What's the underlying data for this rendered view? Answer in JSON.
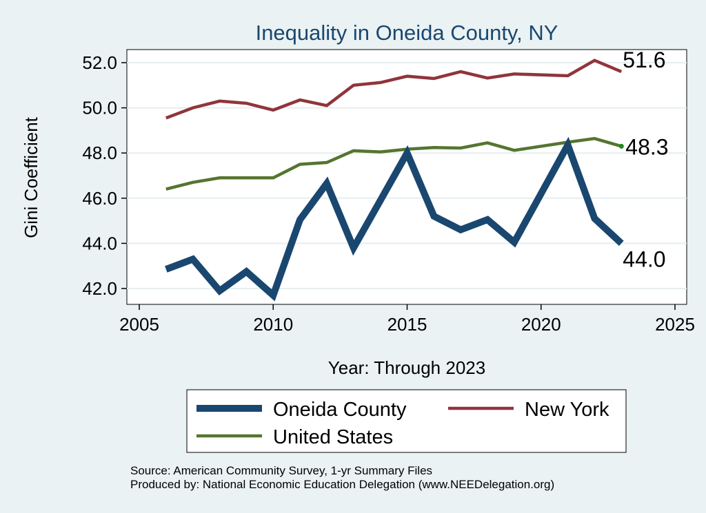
{
  "chart_data": {
    "type": "line",
    "title": "Inequality in Oneida County, NY",
    "xlabel": "Year: Through 2023",
    "ylabel": "Gini Coefficient",
    "xlim": [
      2005,
      2025
    ],
    "ylim": [
      41.5,
      52.5
    ],
    "x_ticks": [
      2005,
      2010,
      2015,
      2020,
      2025
    ],
    "y_ticks": [
      42,
      44,
      46,
      48,
      50,
      52
    ],
    "y_tick_labels": [
      "42.0",
      "44.0",
      "46.0",
      "48.0",
      "50.0",
      "52.0"
    ],
    "grid": true,
    "x": [
      2006,
      2007,
      2008,
      2009,
      2010,
      2011,
      2012,
      2013,
      2014,
      2015,
      2016,
      2017,
      2018,
      2019,
      2021,
      2022,
      2023
    ],
    "series": [
      {
        "name": "Oneida County",
        "color": "#1a476f",
        "values": [
          42.85,
          43.3,
          41.9,
          42.75,
          41.7,
          45.05,
          46.65,
          43.8,
          45.9,
          48.0,
          45.2,
          44.6,
          45.05,
          44.05,
          48.35,
          45.1,
          44.0
        ],
        "end_label": "44.0"
      },
      {
        "name": "New York",
        "color": "#90353b",
        "values": [
          49.55,
          50.0,
          50.3,
          50.2,
          49.9,
          50.35,
          50.1,
          51.0,
          51.12,
          51.4,
          51.3,
          51.6,
          51.32,
          51.5,
          51.42,
          52.1,
          51.6
        ],
        "end_label": "51.6"
      },
      {
        "name": "United States",
        "color": "#55752f",
        "values": [
          46.4,
          46.7,
          46.9,
          46.9,
          46.9,
          47.5,
          47.58,
          48.1,
          48.05,
          48.17,
          48.24,
          48.22,
          48.45,
          48.12,
          48.48,
          48.64,
          48.3
        ],
        "end_label": "48.3"
      }
    ],
    "legend": {
      "position": "bottom",
      "entries": [
        "Oneida County",
        "New York",
        "United States"
      ]
    },
    "source_lines": [
      "Source: American Community Survey, 1-yr Summary Files",
      "Produced by: National Economic Education Delegation (www.NEEDelegation.org)"
    ]
  }
}
